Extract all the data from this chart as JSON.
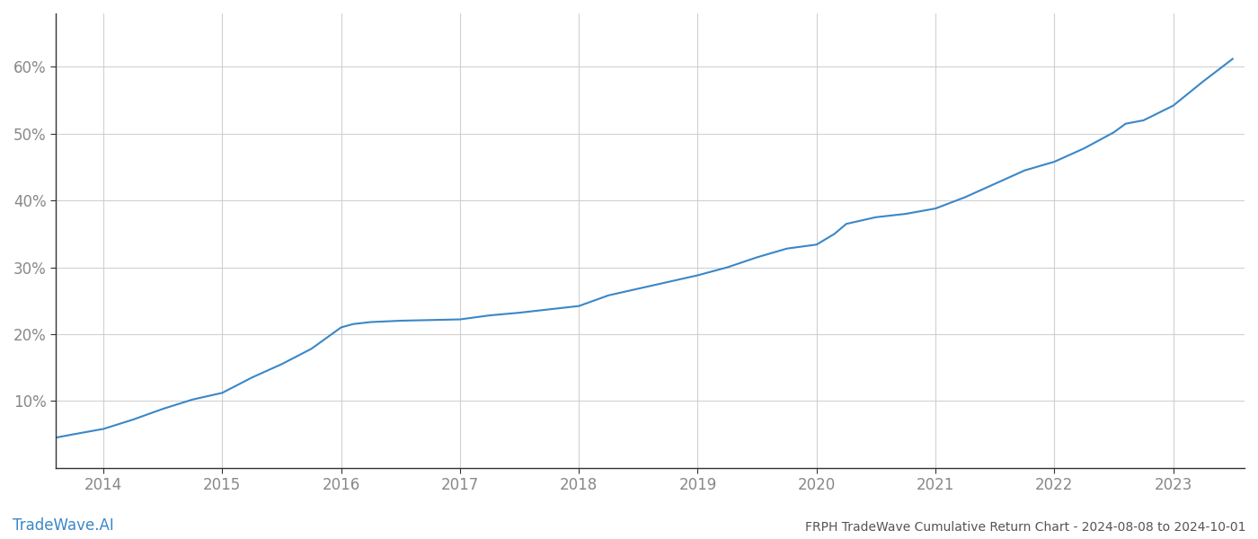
{
  "title": "FRPH TradeWave Cumulative Return Chart - 2024-08-08 to 2024-10-01",
  "watermark": "TradeWave.AI",
  "line_color": "#3a87c8",
  "background_color": "#ffffff",
  "grid_color": "#cccccc",
  "axis_label_color": "#888888",
  "title_color": "#555555",
  "watermark_color": "#3a87c8",
  "spine_color": "#333333",
  "xlim": [
    2013.6,
    2023.6
  ],
  "ylim": [
    0.0,
    0.68
  ],
  "x_ticks": [
    2014,
    2015,
    2016,
    2017,
    2018,
    2019,
    2020,
    2021,
    2022,
    2023
  ],
  "y_ticks": [
    0.1,
    0.2,
    0.3,
    0.4,
    0.5,
    0.6
  ],
  "y_tick_labels": [
    "10%",
    "20%",
    "30%",
    "40%",
    "50%",
    "60%"
  ],
  "x_data": [
    2013.6,
    2013.75,
    2014.0,
    2014.25,
    2014.5,
    2014.75,
    2015.0,
    2015.25,
    2015.5,
    2015.75,
    2016.0,
    2016.1,
    2016.25,
    2016.5,
    2016.75,
    2017.0,
    2017.25,
    2017.5,
    2017.75,
    2018.0,
    2018.25,
    2018.5,
    2018.75,
    2019.0,
    2019.25,
    2019.5,
    2019.75,
    2020.0,
    2020.15,
    2020.25,
    2020.5,
    2020.75,
    2021.0,
    2021.25,
    2021.5,
    2021.75,
    2022.0,
    2022.25,
    2022.5,
    2022.6,
    2022.75,
    2023.0,
    2023.25,
    2023.5
  ],
  "y_data": [
    0.045,
    0.05,
    0.058,
    0.072,
    0.088,
    0.102,
    0.112,
    0.135,
    0.155,
    0.178,
    0.21,
    0.215,
    0.218,
    0.22,
    0.221,
    0.222,
    0.228,
    0.232,
    0.237,
    0.242,
    0.258,
    0.268,
    0.278,
    0.288,
    0.3,
    0.315,
    0.328,
    0.334,
    0.35,
    0.365,
    0.375,
    0.38,
    0.388,
    0.405,
    0.425,
    0.445,
    0.458,
    0.478,
    0.502,
    0.515,
    0.52,
    0.542,
    0.578,
    0.612
  ]
}
